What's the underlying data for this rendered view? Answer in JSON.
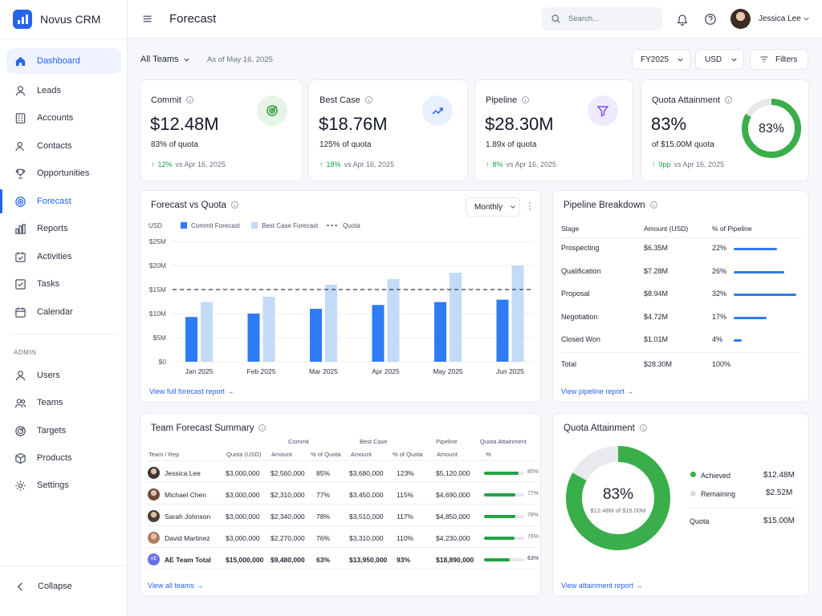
{
  "app": {
    "name": "Novus CRM"
  },
  "sidebar": {
    "items": [
      {
        "label": "Dashboard",
        "icon": "home-icon"
      },
      {
        "label": "Leads",
        "icon": "user-icon"
      },
      {
        "label": "Accounts",
        "icon": "building-icon"
      },
      {
        "label": "Contacts",
        "icon": "contacts-icon"
      },
      {
        "label": "Opportunities",
        "icon": "trophy-icon"
      },
      {
        "label": "Forecast",
        "icon": "target-icon"
      },
      {
        "label": "Reports",
        "icon": "bar-chart-icon"
      },
      {
        "label": "Activities",
        "icon": "calendar-check-icon"
      },
      {
        "label": "Tasks",
        "icon": "checkbox-icon"
      },
      {
        "label": "Calendar",
        "icon": "calendar-icon"
      }
    ],
    "admin_label": "ADMIN",
    "admin_items": [
      {
        "label": "Users",
        "icon": "user-icon"
      },
      {
        "label": "Teams",
        "icon": "team-icon"
      },
      {
        "label": "Targets",
        "icon": "target-icon"
      },
      {
        "label": "Products",
        "icon": "box-icon"
      },
      {
        "label": "Settings",
        "icon": "gear-icon"
      }
    ],
    "collapse": "Collapse"
  },
  "header": {
    "title": "Forecast",
    "search_placeholder": "Search...",
    "user": "Jessica Lee"
  },
  "filters": {
    "team": "All Teams",
    "as_of": "As of May 16, 2025",
    "year": "FY2025",
    "currency": "USD",
    "filters": "Filters"
  },
  "kpis": [
    {
      "title": "Commit",
      "value": "$12.48M",
      "sub": "83% of quota",
      "delta": "12%",
      "vs": "vs Apr 16, 2025"
    },
    {
      "title": "Best Case",
      "value": "$18.76M",
      "sub": "125% of quota",
      "delta": "18%",
      "vs": "vs Apr 16, 2025"
    },
    {
      "title": "Pipeline",
      "value": "$28.30M",
      "sub": "1.89x of quota",
      "delta": "8%",
      "vs": "vs Apr 16, 2025"
    },
    {
      "title": "Quota Attainment",
      "value": "83%",
      "sub": "of $15.00M quota",
      "delta": "9pp",
      "vs": "vs Apr 16, 2025",
      "ring": "83%",
      "ring_fraction": 0.83
    }
  ],
  "forecast_chart": {
    "title": "Forecast vs Quota",
    "period": "Monthly",
    "unit": "USD",
    "link": "View full forecast report"
  },
  "chart_data": {
    "type": "bar",
    "categories": [
      "Jan 2025",
      "Feb 2025",
      "Mar 2025",
      "Apr 2025",
      "May 2025",
      "Jun 2025"
    ],
    "series": [
      {
        "name": "Commit Forecast",
        "values": [
          9.3,
          10.0,
          11.0,
          11.8,
          12.4,
          12.9
        ],
        "color": "#2f7bf5"
      },
      {
        "name": "Best Case Forecast",
        "values": [
          12.4,
          13.5,
          16.0,
          17.2,
          18.5,
          20.0
        ],
        "color": "#c3daf8"
      }
    ],
    "quota": {
      "name": "Quota",
      "value": 15
    },
    "yticks": [
      "$0",
      "$5M",
      "$10M",
      "$15M",
      "$20M",
      "$25M"
    ],
    "ylim": [
      0,
      25
    ],
    "ylabel": "USD"
  },
  "pipeline": {
    "title": "Pipeline Breakdown",
    "headers": [
      "Stage",
      "Amount (USD)",
      "% of Pipeline"
    ],
    "rows": [
      {
        "stage": "Prospecting",
        "amount": "$6.35M",
        "pct": "22%",
        "frac": 0.22
      },
      {
        "stage": "Qualification",
        "amount": "$7.28M",
        "pct": "26%",
        "frac": 0.26
      },
      {
        "stage": "Proposal",
        "amount": "$8.94M",
        "pct": "32%",
        "frac": 0.32
      },
      {
        "stage": "Negotiation",
        "amount": "$4.72M",
        "pct": "17%",
        "frac": 0.17
      },
      {
        "stage": "Closed Won",
        "amount": "$1.01M",
        "pct": "4%",
        "frac": 0.04
      }
    ],
    "total": {
      "stage": "Total",
      "amount": "$28.30M",
      "pct": "100%"
    },
    "link": "View pipeline report"
  },
  "team": {
    "title": "Team Forecast Summary",
    "groups": [
      "Commit",
      "Best Case",
      "Pipeline",
      "Quota Attainment"
    ],
    "headers": [
      "Team / Rep",
      "Quota (USD)",
      "Amount",
      "% of Quota",
      "Amount",
      "% of Quota",
      "Amount",
      "%"
    ],
    "rows": [
      {
        "name": "Jessica Lee",
        "quota": "$3,000,000",
        "commit": "$2,560,000",
        "commit_pct": "85%",
        "best": "$3,680,000",
        "best_pct": "123%",
        "pipeline": "$5,120,000",
        "att": "85%",
        "frac": 0.85
      },
      {
        "name": "Michael Chen",
        "quota": "$3,000,000",
        "commit": "$2,310,000",
        "commit_pct": "77%",
        "best": "$3,450,000",
        "best_pct": "115%",
        "pipeline": "$4,690,000",
        "att": "77%",
        "frac": 0.77
      },
      {
        "name": "Sarah Johnson",
        "quota": "$3,000,000",
        "commit": "$2,340,000",
        "commit_pct": "78%",
        "best": "$3,510,000",
        "best_pct": "117%",
        "pipeline": "$4,850,000",
        "att": "78%",
        "frac": 0.78
      },
      {
        "name": "David Martinez",
        "quota": "$3,000,000",
        "commit": "$2,270,000",
        "commit_pct": "76%",
        "best": "$3,310,000",
        "best_pct": "110%",
        "pipeline": "$4,230,000",
        "att": "76%",
        "frac": 0.76
      }
    ],
    "total": {
      "initials": "AE",
      "name": "AE Team Total",
      "quota": "$15,000,000",
      "commit": "$9,480,000",
      "commit_pct": "63%",
      "best": "$13,950,000",
      "best_pct": "93%",
      "pipeline": "$18,890,000",
      "att": "63%",
      "frac": 0.63
    },
    "link": "View all teams"
  },
  "attainment": {
    "title": "Quota Attainment",
    "center": "83%",
    "center_sub": "$12.48M of $15.00M",
    "fraction": 0.83,
    "legend": [
      {
        "label": "Achieved",
        "value": "$12.48M",
        "color": "#3aae4a"
      },
      {
        "label": "Remaining",
        "value": "$2.52M",
        "color": "#d9dbe0"
      }
    ],
    "quota_label": "Quota",
    "quota_value": "$15.00M",
    "link": "View attainment report"
  },
  "colors": {
    "accent": "#2563eb",
    "green": "#3aae4a"
  }
}
